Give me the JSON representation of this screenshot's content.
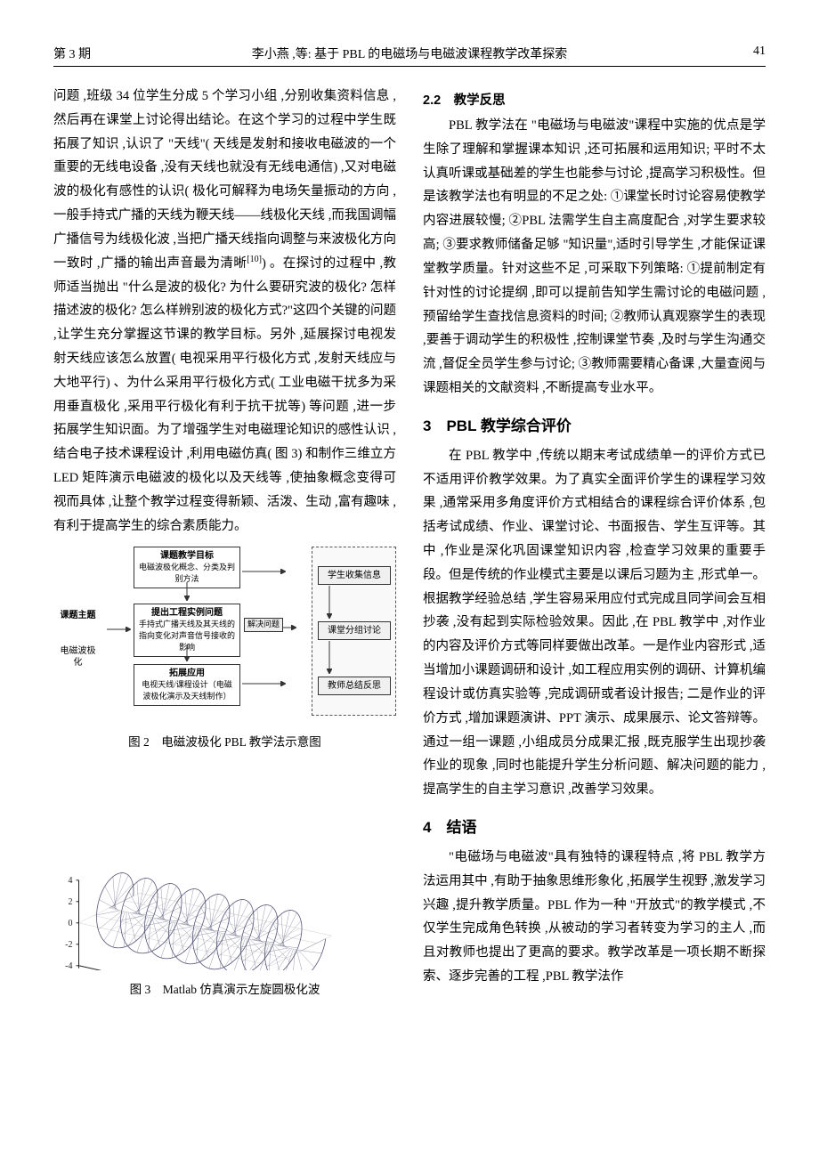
{
  "header": {
    "issue": "第 3 期",
    "title": "李小燕 ,等: 基于 PBL 的电磁场与电磁波课程教学改革探索",
    "page": "41"
  },
  "left_col": {
    "para1": "问题 ,班级 34 位学生分成 5 个学习小组 ,分别收集资料信息 ,然后再在课堂上讨论得出结论。在这个学习的过程中学生既拓展了知识 ,认识了 \"天线\"( 天线是发射和接收电磁波的一个重要的无线电设备 ,没有天线也就没有无线电通信) ,又对电磁波的极化有感性的认识( 极化可解释为电场矢量振动的方向 ,一般手持式广播的天线为鞭天线——线极化天线 ,而我国调幅广播信号为线极化波 ,当把广播天线指向调整与来波极化方向一致时 ,广播的输出声音最为清晰",
    "para1_ref": "[10]",
    "para1_cont": ") 。在探讨的过程中 ,教师适当抛出 \"什么是波的极化? 为什么要研究波的极化? 怎样描述波的极化? 怎么样辨别波的极化方式?\"这四个关键的问题 ,让学生充分掌握这节课的教学目标。另外 ,延展探讨电视发射天线应该怎么放置( 电视采用平行极化方式 ,发射天线应与大地平行) 、为什么采用平行极化方式( 工业电磁干扰多为采用垂直极化 ,采用平行极化有利于抗干扰等) 等问题 ,进一步拓展学生知识面。为了增强学生对电磁理论知识的感性认识 ,结合电子技术课程设计 ,利用电磁仿真( 图 3) 和制作三维立方 LED 矩阵演示电磁波的极化以及天线等 ,使抽象概念变得可视而具体 ,让整个教学过程变得新颖、活泼、生动 ,富有趣味 ,有利于提高学生的综合素质能力。",
    "fig2_caption": "图 2　电磁波极化 PBL 教学法示意图",
    "fig2": {
      "left_label1": "课题主题",
      "left_label2": "电磁波极化",
      "n1": "课题教学目标",
      "n1sub": "电磁波极化概念、分类及判别方法",
      "n2": "提出工程实例问题",
      "n2sub": "手持式广播天线及其天线的指向变化对声音信号接收的影响",
      "n3": "拓展应用",
      "n3sub": "电视天线/课程设计（电磁波极化演示及天线制作）",
      "r1": "学生收集信息",
      "r2": "课堂分组讨论",
      "r3": "教师总结反思",
      "mid": "解决问题"
    },
    "fig3_caption": "图 3　Matlab 仿真演示左旋圆极化波",
    "fig3": {
      "z_ticks": [
        4,
        2,
        0,
        -2,
        -4
      ],
      "x_ticks": [
        0,
        5,
        10,
        15,
        20,
        25,
        30
      ],
      "y_ticks": [
        -4,
        -2,
        0,
        2,
        4
      ],
      "x_label": "x",
      "y_label": "y",
      "z_label": "z",
      "helix_color": "#555577",
      "axis_color": "#222222",
      "grid_color": "#cfcfcf",
      "helix_radius": 3.2,
      "turns": 8,
      "line_width": 0.8
    }
  },
  "right_col": {
    "sub22": "2.2　教学反思",
    "para2": "PBL 教学法在 \"电磁场与电磁波\"课程中实施的优点是学生除了理解和掌握课本知识 ,还可拓展和运用知识; 平时不太认真听课或基础差的学生也能参与讨论 ,提高学习积极性。但是该教学法也有明显的不足之处: ①课堂长时讨论容易使教学内容进展较慢; ②PBL 法需学生自主高度配合 ,对学生要求较高; ③要求教师储备足够 \"知识量\",适时引导学生 ,才能保证课堂教学质量。针对这些不足 ,可采取下列策略: ①提前制定有针对性的讨论提纲 ,即可以提前告知学生需讨论的电磁问题 ,预留给学生查找信息资料的时间; ②教师认真观察学生的表现 ,要善于调动学生的积极性 ,控制课堂节奏 ,及时与学生沟通交流 ,督促全员学生参与讨论; ③教师需要精心备课 ,大量查阅与课题相关的文献资料 ,不断提高专业水平。",
    "sec3": "3　PBL 教学综合评价",
    "para3": "在 PBL 教学中 ,传统以期末考试成绩单一的评价方式已不适用评价教学效果。为了真实全面评价学生的课程学习效果 ,通常采用多角度评价方式相结合的课程综合评价体系 ,包括考试成绩、作业、课堂讨论、书面报告、学生互评等。其中 ,作业是深化巩固课堂知识内容 ,检查学习效果的重要手段。但是传统的作业模式主要是以课后习题为主 ,形式单一。根据教学经验总结 ,学生容易采用应付式完成且同学间会互相抄袭 ,没有起到实际检验效果。因此 ,在 PBL 教学中 ,对作业的内容及评价方式等同样要做出改革。一是作业内容形式 ,适当增加小课题调研和设计 ,如工程应用实例的调研、计算机编程设计或仿真实验等 ,完成调研或者设计报告; 二是作业的评价方式 ,增加课题演讲、PPT 演示、成果展示、论文答辩等。通过一组一课题 ,小组成员分成果汇报 ,既克服学生出现抄袭作业的现象 ,同时也能提升学生分析问题、解决问题的能力 ,提高学生的自主学习意识 ,改善学习效果。",
    "sec4": "4　结语",
    "para4": "\"电磁场与电磁波\"具有独特的课程特点 ,将 PBL 教学方法运用其中 ,有助于抽象思维形象化 ,拓展学生视野 ,激发学习兴趣 ,提升教学质量。PBL 作为一种 \"开放式\"的教学模式 ,不仅学生完成角色转换 ,从被动的学习者转变为学习的主人 ,而且对教师也提出了更高的要求。教学改革是一项长期不断探索、逐步完善的工程 ,PBL 教学法作"
  }
}
